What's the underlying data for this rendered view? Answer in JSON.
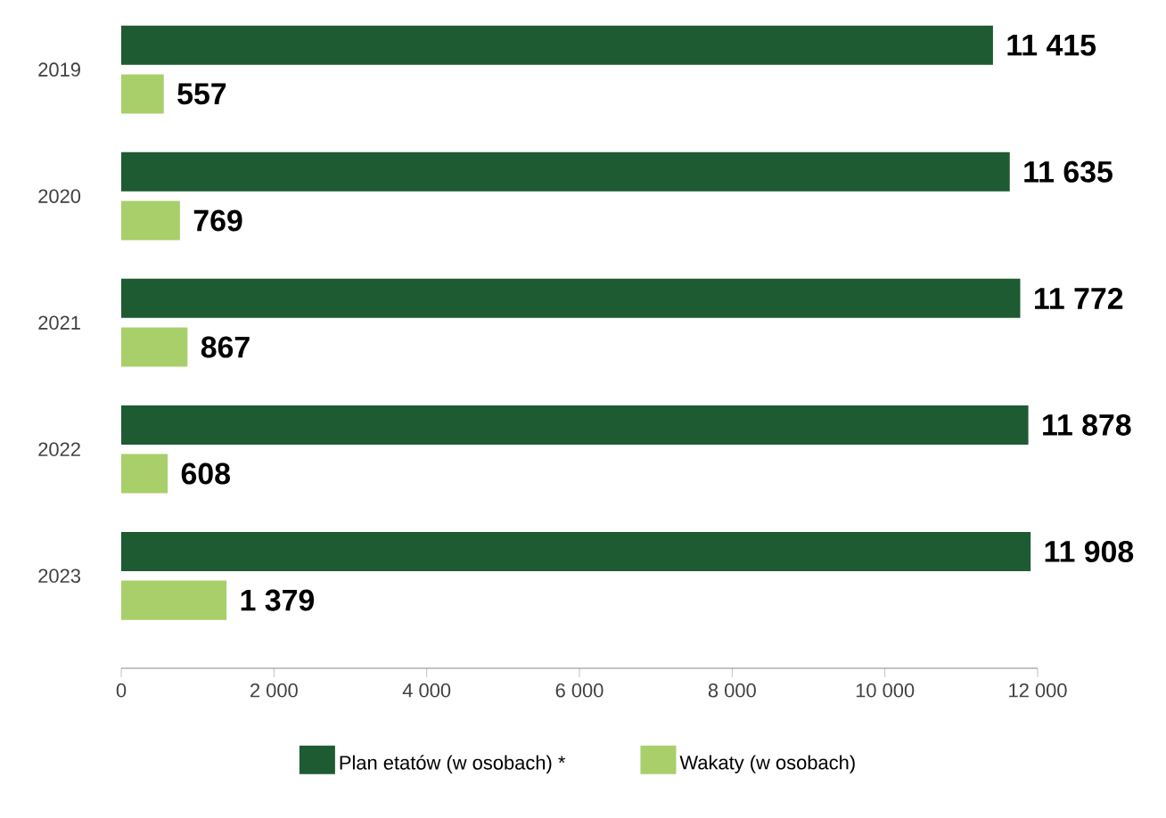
{
  "chart_data": {
    "type": "bar",
    "orientation": "horizontal",
    "categories": [
      "2019",
      "2020",
      "2021",
      "2022",
      "2023"
    ],
    "series": [
      {
        "name": "Plan etatów (w osobach) *",
        "color": "#1e5a32",
        "values": [
          11415,
          11635,
          11772,
          11878,
          11908
        ],
        "value_labels": [
          "11 415",
          "11 635",
          "11 772",
          "11 878",
          "11 908"
        ]
      },
      {
        "name": "Wakaty (w osobach)",
        "color": "#a8cf6a",
        "values": [
          557,
          769,
          867,
          608,
          1379
        ],
        "value_labels": [
          "557",
          "769",
          "867",
          "608",
          "1 379"
        ]
      }
    ],
    "xlim": [
      0,
      12000
    ],
    "xticks": [
      0,
      {
        "value": 2000,
        "label": "2 000"
      },
      {
        "value": 4000,
        "label": "4 000"
      },
      {
        "value": 6000,
        "label": "6 000"
      },
      {
        "value": 8000,
        "label": "8 000"
      },
      {
        "value": 10000,
        "label": "10 000"
      },
      {
        "value": 12000,
        "label": "12 000"
      }
    ],
    "legend": "bottom",
    "grid": false
  }
}
